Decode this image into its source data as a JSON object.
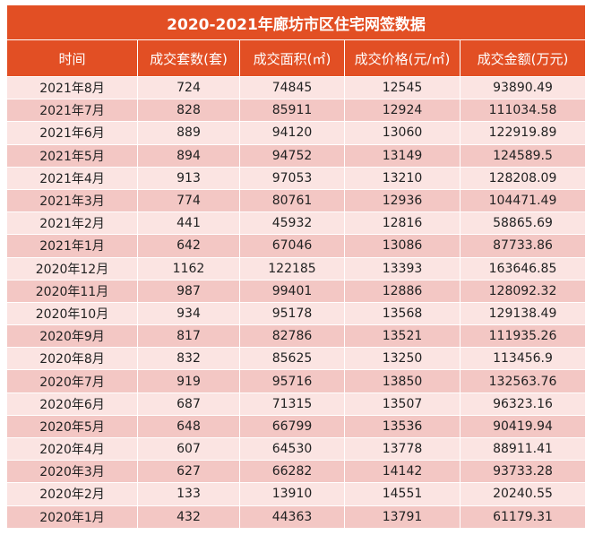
{
  "title": "2020-2021年廊坊市区住宅网签数据",
  "headers": [
    "时间",
    "成交套数(套)",
    "成交面积(㎡)",
    "成交价格(元/㎡)",
    "成交金额(万元)"
  ],
  "rows": [
    [
      "2021年8月",
      "724",
      "74845",
      "12545",
      "93890.49"
    ],
    [
      "2021年7月",
      "828",
      "85911",
      "12924",
      "111034.58"
    ],
    [
      "2021年6月",
      "889",
      "94120",
      "13060",
      "122919.89"
    ],
    [
      "2021年5月",
      "894",
      "94752",
      "13149",
      "124589.5"
    ],
    [
      "2021年4月",
      "913",
      "97053",
      "13210",
      "128208.09"
    ],
    [
      "2021年3月",
      "774",
      "80761",
      "12936",
      "104471.49"
    ],
    [
      "2021年2月",
      "441",
      "45932",
      "12816",
      "58865.69"
    ],
    [
      "2021年1月",
      "642",
      "67046",
      "13086",
      "87733.86"
    ],
    [
      "2020年12月",
      "1162",
      "122185",
      "13393",
      "163646.85"
    ],
    [
      "2020年11月",
      "987",
      "99401",
      "12886",
      "128092.32"
    ],
    [
      "2020年10月",
      "934",
      "95178",
      "13568",
      "129138.49"
    ],
    [
      "2020年9月",
      "817",
      "82786",
      "13521",
      "111935.26"
    ],
    [
      "2020年8月",
      "832",
      "85625",
      "13250",
      "113456.9"
    ],
    [
      "2020年7月",
      "919",
      "95716",
      "13850",
      "132563.76"
    ],
    [
      "2020年6月",
      "687",
      "71315",
      "13507",
      "96323.16"
    ],
    [
      "2020年5月",
      "648",
      "66799",
      "13536",
      "90419.94"
    ],
    [
      "2020年4月",
      "607",
      "64530",
      "13778",
      "88911.41"
    ],
    [
      "2020年3月",
      "627",
      "66282",
      "14142",
      "93733.28"
    ],
    [
      "2020年2月",
      "133",
      "13910",
      "14551",
      "20240.55"
    ],
    [
      "2020年1月",
      "432",
      "44363",
      "13791",
      "61179.31"
    ]
  ],
  "colors": {
    "header": "#e24f24",
    "row_light": "#fbe4e2",
    "row_dark": "#f3c7c4"
  }
}
